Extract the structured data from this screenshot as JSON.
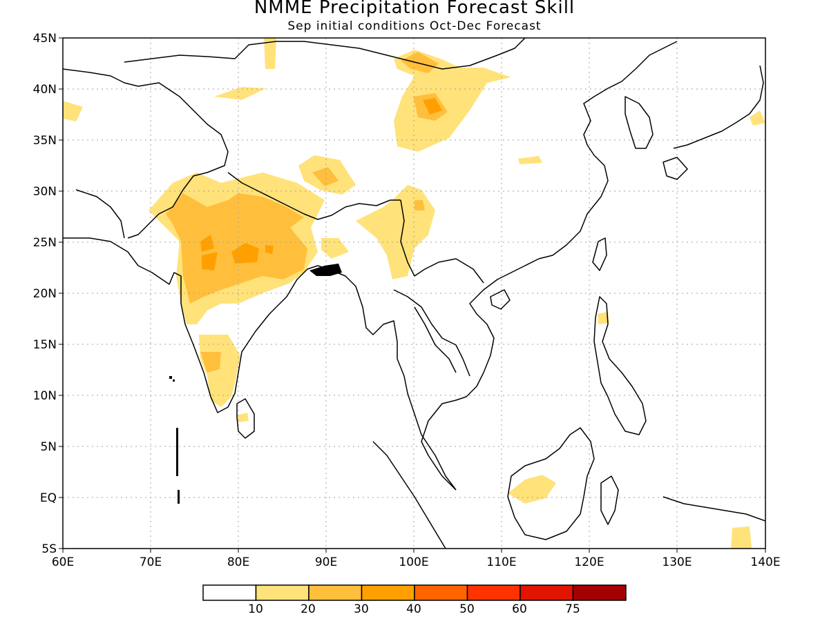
{
  "title": "NMME Precipitation Forecast Skill",
  "subtitle": "Sep initial conditions  Oct-Dec Forecast",
  "map": {
    "lon_range": [
      60,
      140
    ],
    "lat_range": [
      -5,
      45
    ],
    "x_tick_labels": [
      "60E",
      "70E",
      "80E",
      "90E",
      "100E",
      "110E",
      "120E",
      "130E",
      "140E"
    ],
    "y_tick_labels": [
      "45N",
      "40N",
      "35N",
      "30N",
      "25N",
      "20N",
      "15N",
      "10N",
      "5N",
      "EQ",
      "5S"
    ],
    "grid": "dotted"
  },
  "colorbar": {
    "colors": [
      "#ffffff",
      "#ffe27a",
      "#ffbf3c",
      "#ffa000",
      "#ff6400",
      "#ff3200",
      "#e11400",
      "#a50000"
    ],
    "tick_labels": [
      "10",
      "20",
      "30",
      "40",
      "50",
      "60",
      "75"
    ]
  }
}
